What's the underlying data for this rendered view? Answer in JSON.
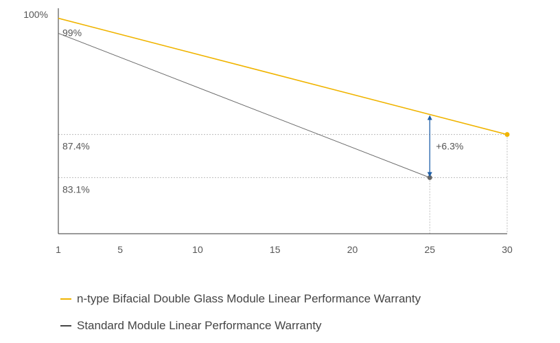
{
  "chart_data": {
    "type": "line",
    "x_ticks": [
      1,
      5,
      10,
      15,
      20,
      25,
      30
    ],
    "y_axis_max_label": "100%",
    "xlim": [
      1,
      30
    ],
    "ylim": [
      77.5,
      100
    ],
    "grid": false,
    "legend_placement": "bottom-left",
    "series": [
      {
        "name": "n-type Bifacial Double Glass Module Linear Performance Warranty",
        "color": "#f0b400",
        "points": [
          [
            1,
            99
          ],
          [
            30,
            87.4
          ]
        ]
      },
      {
        "name": "Standard Module Linear Performance Warranty",
        "color": "#666666",
        "points": [
          [
            1,
            97.5
          ],
          [
            25,
            83.1
          ]
        ]
      }
    ],
    "annotations": {
      "start_label": "99%",
      "reference_labels": [
        {
          "text": "87.4%",
          "y": 87.4
        },
        {
          "text": "83.1%",
          "y": 83.1
        }
      ],
      "gap_label": "+6.3%",
      "gap_x": 25,
      "gap_arrow_color": "#1e5fa8"
    }
  }
}
